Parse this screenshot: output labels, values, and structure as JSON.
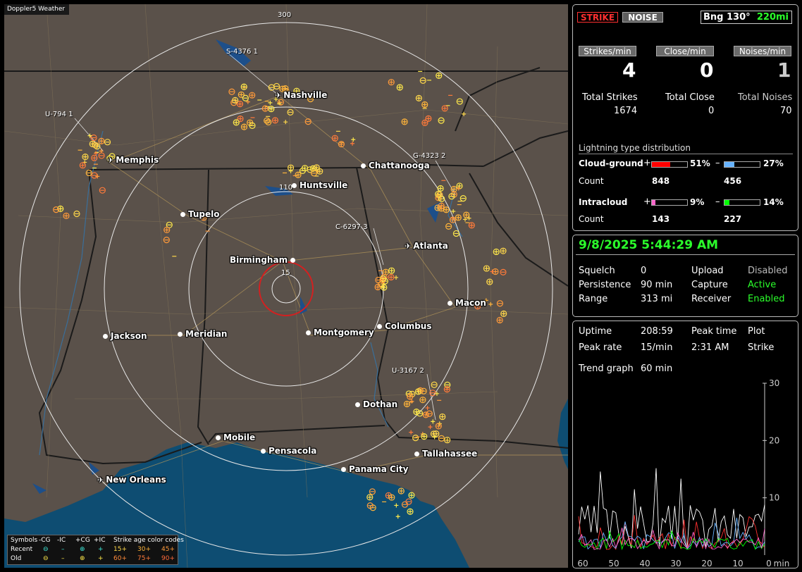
{
  "app": {
    "title": "Doppler5 Weather"
  },
  "map": {
    "ring_labels": {
      "r300": "300",
      "r110": "110",
      "r15": "15"
    },
    "storm_labels": {
      "s4376": "S-4376  1",
      "u794": "U-794  1",
      "g4323": "G-4323  2",
      "c6297": "C-6297  3",
      "u3167": "U-3167  2"
    },
    "cities": [
      {
        "name": "Nashville",
        "kind": "airport"
      },
      {
        "name": "Memphis",
        "kind": "airport"
      },
      {
        "name": "Chattanooga",
        "kind": "dot"
      },
      {
        "name": "Huntsville",
        "kind": "dot"
      },
      {
        "name": "Tupelo",
        "kind": "dot"
      },
      {
        "name": "Atlanta",
        "kind": "airport"
      },
      {
        "name": "Birmingham",
        "kind": "dot"
      },
      {
        "name": "Macon",
        "kind": "dot"
      },
      {
        "name": "Jackson",
        "kind": "dot"
      },
      {
        "name": "Meridian",
        "kind": "dot"
      },
      {
        "name": "Montgomery",
        "kind": "dot"
      },
      {
        "name": "Columbus",
        "kind": "dot"
      },
      {
        "name": "Dothan",
        "kind": "dot"
      },
      {
        "name": "Mobile",
        "kind": "dot"
      },
      {
        "name": "Pensacola",
        "kind": "dot"
      },
      {
        "name": "Tallahassee",
        "kind": "dot"
      },
      {
        "name": "Panama City",
        "kind": "dot"
      },
      {
        "name": "New Orleans",
        "kind": "airport"
      }
    ],
    "legend": {
      "symbols_label": "Symbols",
      "h_neg_cg": "-CG",
      "h_neg_ic": "-IC",
      "h_pos_cg": "+CG",
      "h_pos_ic": "+IC",
      "age_label": "Strike age color codes",
      "recent_label": "Recent",
      "old_label": "Old",
      "age_15": "15+",
      "age_30": "30+",
      "age_45": "45+",
      "age_60": "60+",
      "age_75": "75+",
      "age_90": "90+"
    }
  },
  "status": {
    "strike_tab": "STRIKE",
    "noise_tab": "NOISE",
    "bearing": "Bng 130°",
    "distance": "220mi",
    "strikes_per_min_label": "Strikes/min",
    "close_per_min_label": "Close/min",
    "noises_per_min_label": "Noises/min",
    "strikes_per_min": "4",
    "close_per_min": "0",
    "noises_per_min": "1",
    "total_strikes_label": "Total Strikes",
    "total_close_label": "Total Close",
    "total_noises_label": "Total Noises",
    "total_strikes": "1674",
    "total_close": "0",
    "total_noises": "70",
    "distribution_title": "Lightning type distribution",
    "cg_label": "Cloud-ground",
    "ic_label": "Intracloud",
    "count_label": "Count",
    "plus": "+",
    "minus": "–",
    "cg_pos_pct": "51%",
    "cg_pos_frac": 0.51,
    "cg_neg_pct": "27%",
    "cg_neg_frac": 0.27,
    "cg_pos_count": "848",
    "cg_neg_count": "456",
    "ic_pos_pct": "9%",
    "ic_pos_frac": 0.09,
    "ic_neg_pct": "14%",
    "ic_neg_frac": 0.14,
    "ic_pos_count": "143",
    "ic_neg_count": "227",
    "colors": {
      "cg_pos": "#ff0000",
      "cg_neg": "#66b3ff",
      "ic_pos": "#ff66cc",
      "ic_neg": "#00ff00"
    }
  },
  "settings": {
    "datetime": "9/8/2025 5:44:29 AM",
    "squelch_label": "Squelch",
    "squelch": "0",
    "persistence_label": "Persistence",
    "persistence": "90 min",
    "range_label": "Range",
    "range": "313 mi",
    "upload_label": "Upload",
    "upload": "Disabled",
    "capture_label": "Capture",
    "capture": "Active",
    "receiver_label": "Receiver",
    "receiver": "Enabled"
  },
  "trend": {
    "uptime_label": "Uptime",
    "uptime": "208:59",
    "peak_time_label": "Peak time",
    "peak_time": "2:31 AM",
    "plot_label": "Plot",
    "plot": "Strike",
    "peak_rate_label": "Peak rate",
    "peak_rate": "15/min",
    "trend_graph_label": "Trend graph",
    "trend_graph": "60 min",
    "y_ticks": [
      "30",
      "20",
      "10"
    ],
    "x_ticks": [
      "60",
      "50",
      "40",
      "30",
      "20",
      "10",
      "0"
    ],
    "x_unit": "min"
  }
}
